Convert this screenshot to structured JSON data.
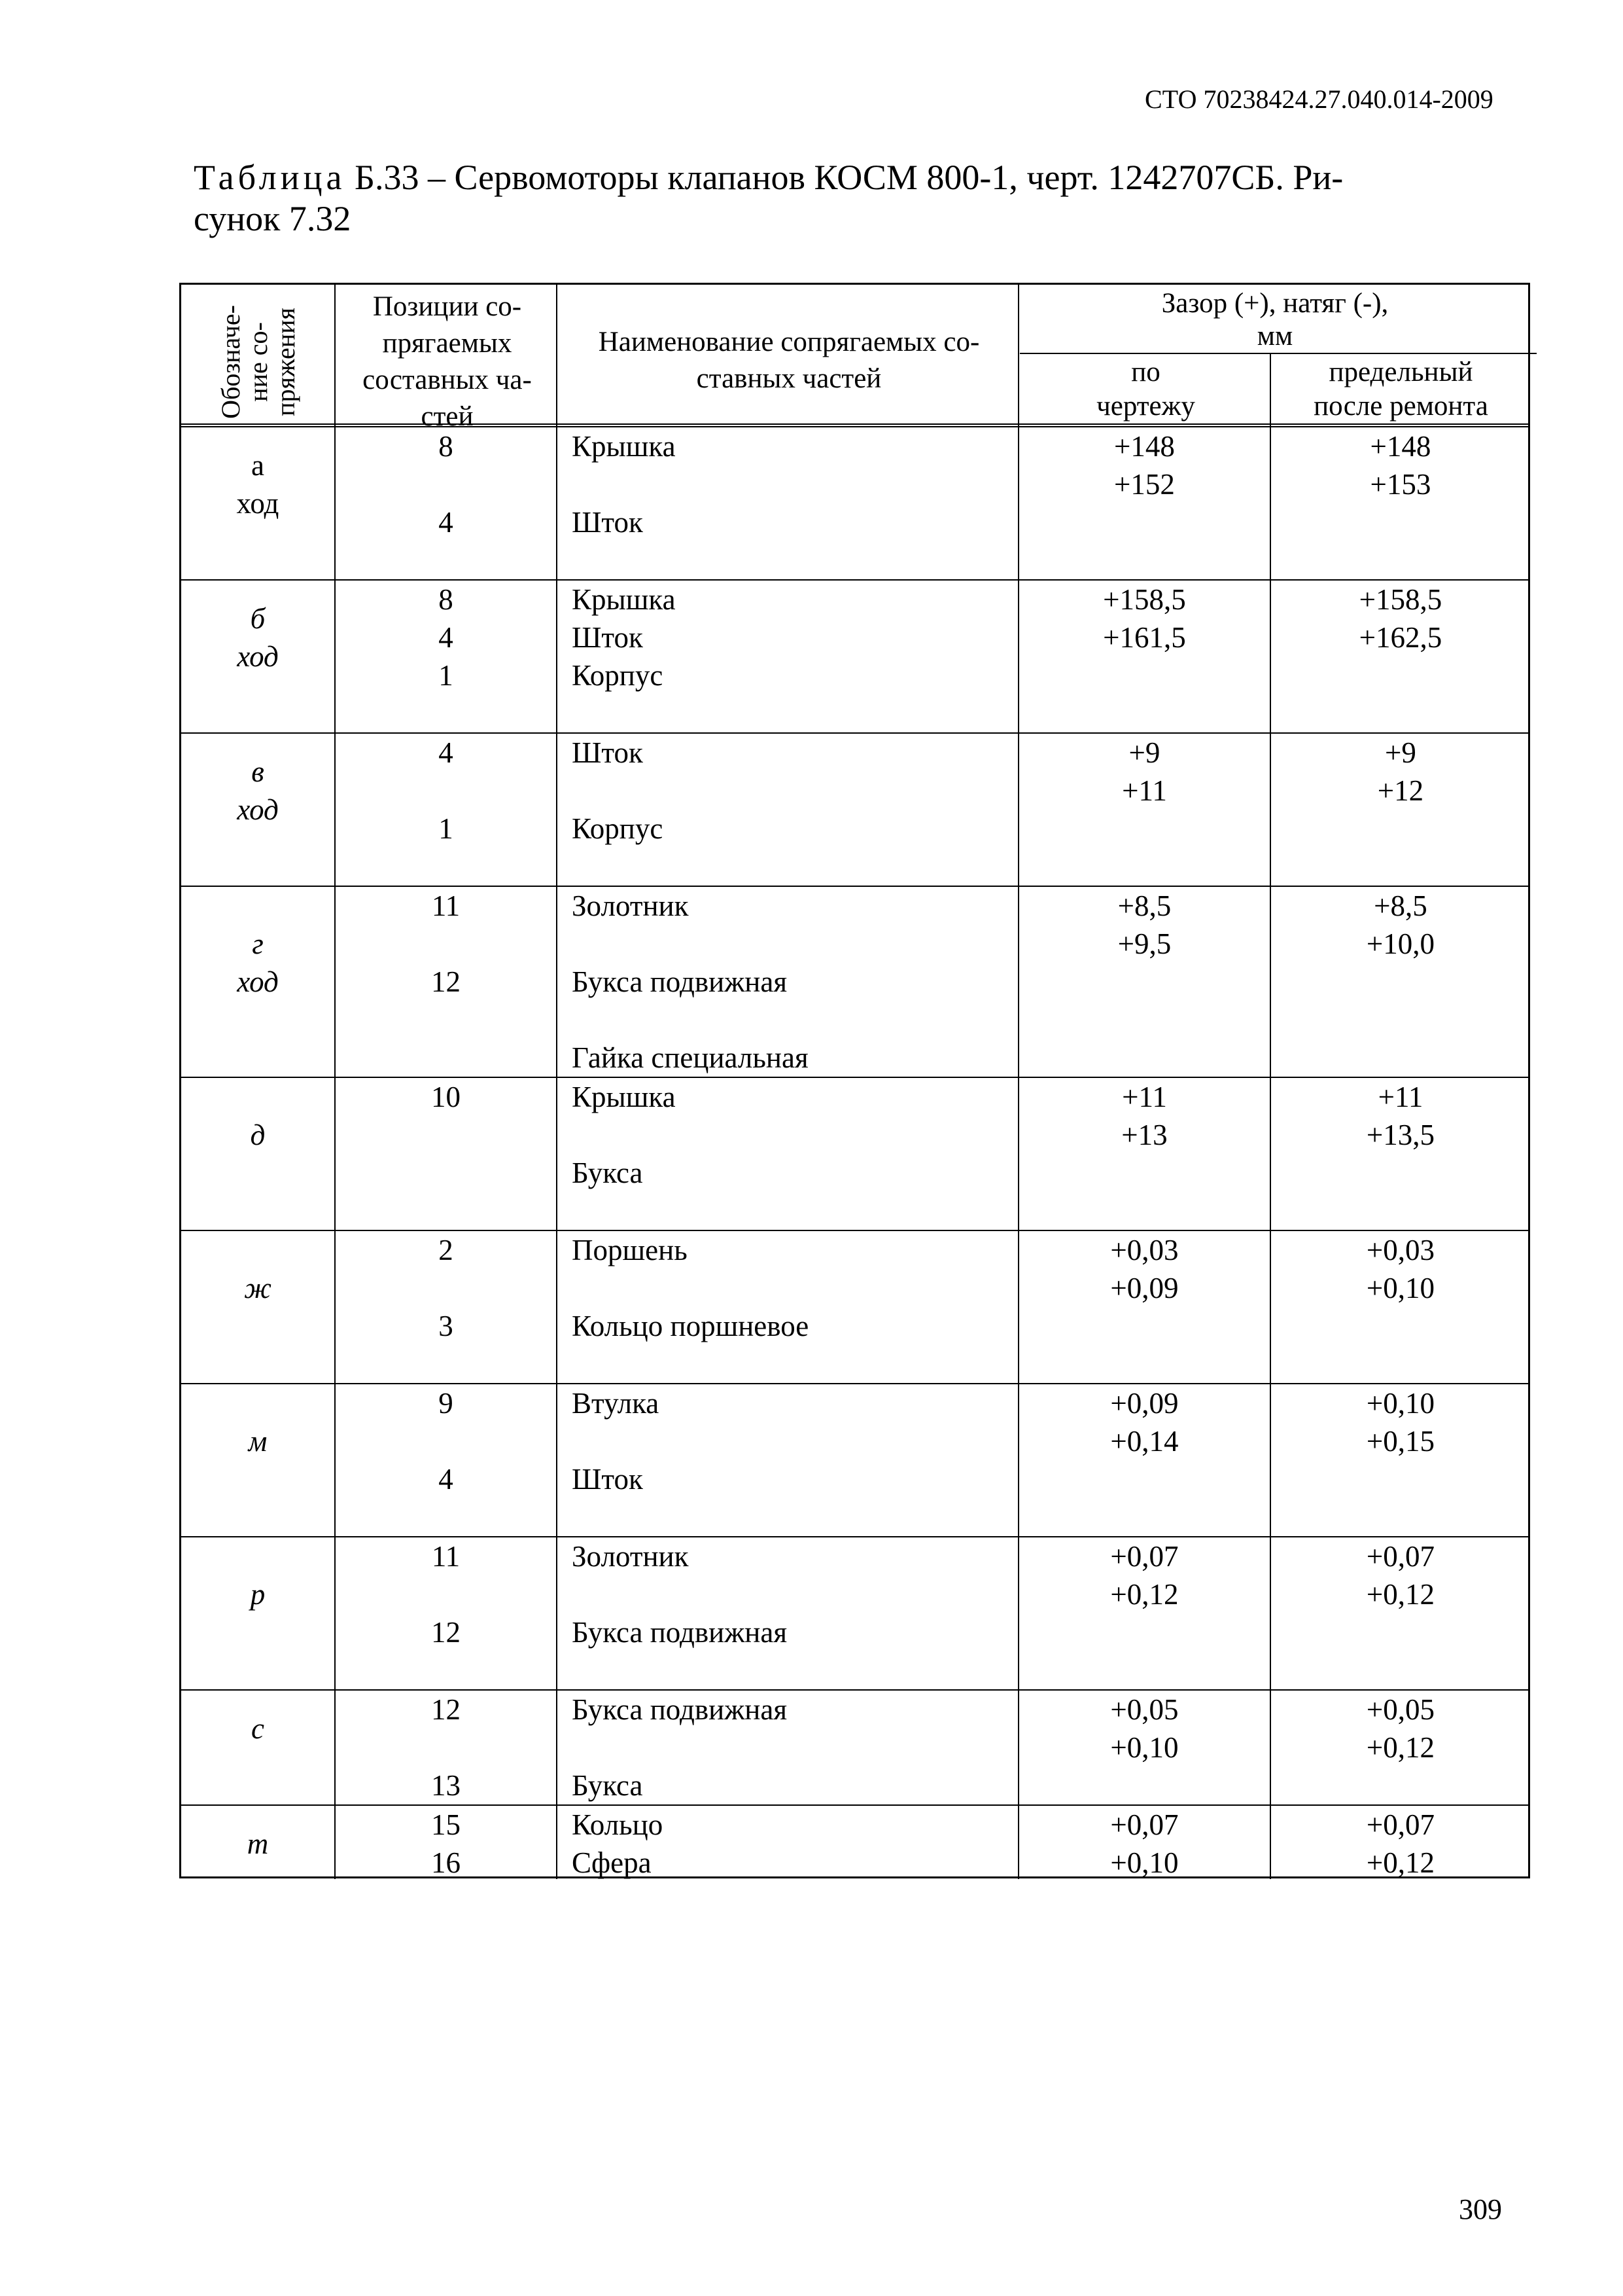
{
  "doc_code": "СТО 70238424.27.040.014-2009",
  "title": {
    "prefix": "Таблица",
    "text": " Б.33 – Сервомоторы клапанов КОСМ 800-1, черт. 1242707СБ. Ри-",
    "line2": "сунок 7.32"
  },
  "page_number": "309",
  "header": {
    "designation": [
      "Обозначе-",
      "ние со-",
      "пряжения"
    ],
    "positions": [
      "Позиции со-",
      "прягаемых",
      "составных ча-",
      "стей"
    ],
    "names": [
      "Наименование сопрягаемых со-",
      "ставных частей"
    ],
    "gap": [
      "Зазор (+), натяг (-),",
      "мм"
    ],
    "by_drawing": [
      "по",
      "чертежу"
    ],
    "limit": [
      "предельный",
      "после ремонта"
    ]
  },
  "rows": [
    {
      "label": [
        "а",
        "ход"
      ],
      "italic": false,
      "half": true,
      "lines": 4,
      "pos": [
        "8",
        "",
        "4"
      ],
      "names": [
        "Крышка",
        "",
        "Шток"
      ],
      "draw": [
        "+148",
        "+152"
      ],
      "limit": [
        "+148",
        "+153"
      ]
    },
    {
      "label": [
        "б",
        "ход"
      ],
      "italic": true,
      "half": true,
      "lines": 4,
      "pos": [
        "8",
        "4",
        "1"
      ],
      "names": [
        "Крышка",
        "Шток",
        "Корпус"
      ],
      "draw": [
        "+158,5",
        "+161,5"
      ],
      "limit": [
        "+158,5",
        "+162,5"
      ]
    },
    {
      "label": [
        "в",
        "ход"
      ],
      "italic": true,
      "half": true,
      "lines": 4,
      "pos": [
        "4",
        "",
        "1"
      ],
      "names": [
        "Шток",
        "",
        "Корпус"
      ],
      "draw": [
        "+9",
        "+11"
      ],
      "limit": [
        "+9",
        "+12"
      ]
    },
    {
      "label": [
        "",
        "г",
        "ход"
      ],
      "italic": true,
      "half": false,
      "lines": 5,
      "pos": [
        "11",
        "",
        "12"
      ],
      "names": [
        "Золотник",
        "",
        "Букса подвижная",
        "",
        "Гайка специальная"
      ],
      "draw": [
        "+8,5",
        "+9,5"
      ],
      "limit": [
        "+8,5",
        "+10,0"
      ]
    },
    {
      "label": [
        "",
        "д"
      ],
      "italic": true,
      "half": false,
      "lines": 4,
      "pos": [
        "10"
      ],
      "names": [
        "Крышка",
        "",
        "Букса"
      ],
      "draw": [
        "+11",
        "+13"
      ],
      "limit": [
        "+11",
        "+13,5"
      ]
    },
    {
      "label": [
        "",
        "ж"
      ],
      "italic": true,
      "half": false,
      "lines": 4,
      "pos": [
        "2",
        "",
        "3"
      ],
      "names": [
        "Поршень",
        "",
        "Кольцо поршневое"
      ],
      "draw": [
        "+0,03",
        "+0,09"
      ],
      "limit": [
        "+0,03",
        "+0,10"
      ]
    },
    {
      "label": [
        "",
        "м"
      ],
      "italic": true,
      "half": false,
      "lines": 4,
      "pos": [
        "9",
        "",
        "4"
      ],
      "names": [
        "Втулка",
        "",
        "Шток"
      ],
      "draw": [
        "+0,09",
        "+0,14"
      ],
      "limit": [
        "+0,10",
        "+0,15"
      ]
    },
    {
      "label": [
        "",
        "р"
      ],
      "italic": true,
      "half": false,
      "lines": 4,
      "pos": [
        "11",
        "",
        "12"
      ],
      "names": [
        "Золотник",
        "",
        "Букса подвижная"
      ],
      "draw": [
        "+0,07",
        "+0,12"
      ],
      "limit": [
        "+0,07",
        "+0,12"
      ]
    },
    {
      "label": [
        "с"
      ],
      "italic": true,
      "half": true,
      "lines": 3,
      "pos": [
        "12",
        "",
        "13"
      ],
      "names": [
        "Букса подвижная",
        "",
        "Букса"
      ],
      "draw": [
        "+0,05",
        "+0,10"
      ],
      "limit": [
        "+0,05",
        "+0,12"
      ]
    },
    {
      "label": [
        "т"
      ],
      "italic": true,
      "half": true,
      "lines": 2,
      "pos": [
        "15",
        "16"
      ],
      "names": [
        "Кольцо",
        "Сфера"
      ],
      "draw": [
        "+0,07",
        "+0,10"
      ],
      "limit": [
        "+0,07",
        "+0,12"
      ]
    }
  ]
}
